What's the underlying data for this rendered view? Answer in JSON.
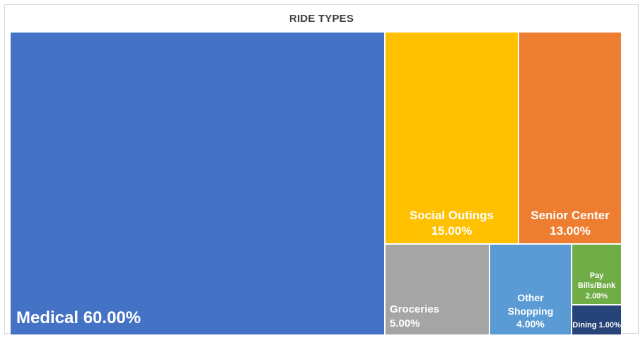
{
  "chart_data": {
    "type": "treemap",
    "title": "RIDE TYPES",
    "items": [
      {
        "name": "Medical",
        "value": 60,
        "label": "Medical 60.00%",
        "color": "#4472C4"
      },
      {
        "name": "Social Outings",
        "value": 15,
        "label": "Social Outings\n15.00%",
        "color": "#FFC000"
      },
      {
        "name": "Senior Center",
        "value": 13,
        "label": "Senior Center\n13.00%",
        "color": "#ED7D31"
      },
      {
        "name": "Groceries",
        "value": 5,
        "label": "Groceries\n5.00%",
        "color": "#A5A5A5"
      },
      {
        "name": "Other Shopping",
        "value": 4,
        "label": "Other\nShopping\n4.00%",
        "color": "#5B9BD5"
      },
      {
        "name": "Pay Bills/Bank",
        "value": 2,
        "label": "Pay\nBills/Bank\n2.00%",
        "color": "#70AD47"
      },
      {
        "name": "Dining",
        "value": 1,
        "label": "Dining 1.00%",
        "color": "#264478"
      }
    ]
  }
}
